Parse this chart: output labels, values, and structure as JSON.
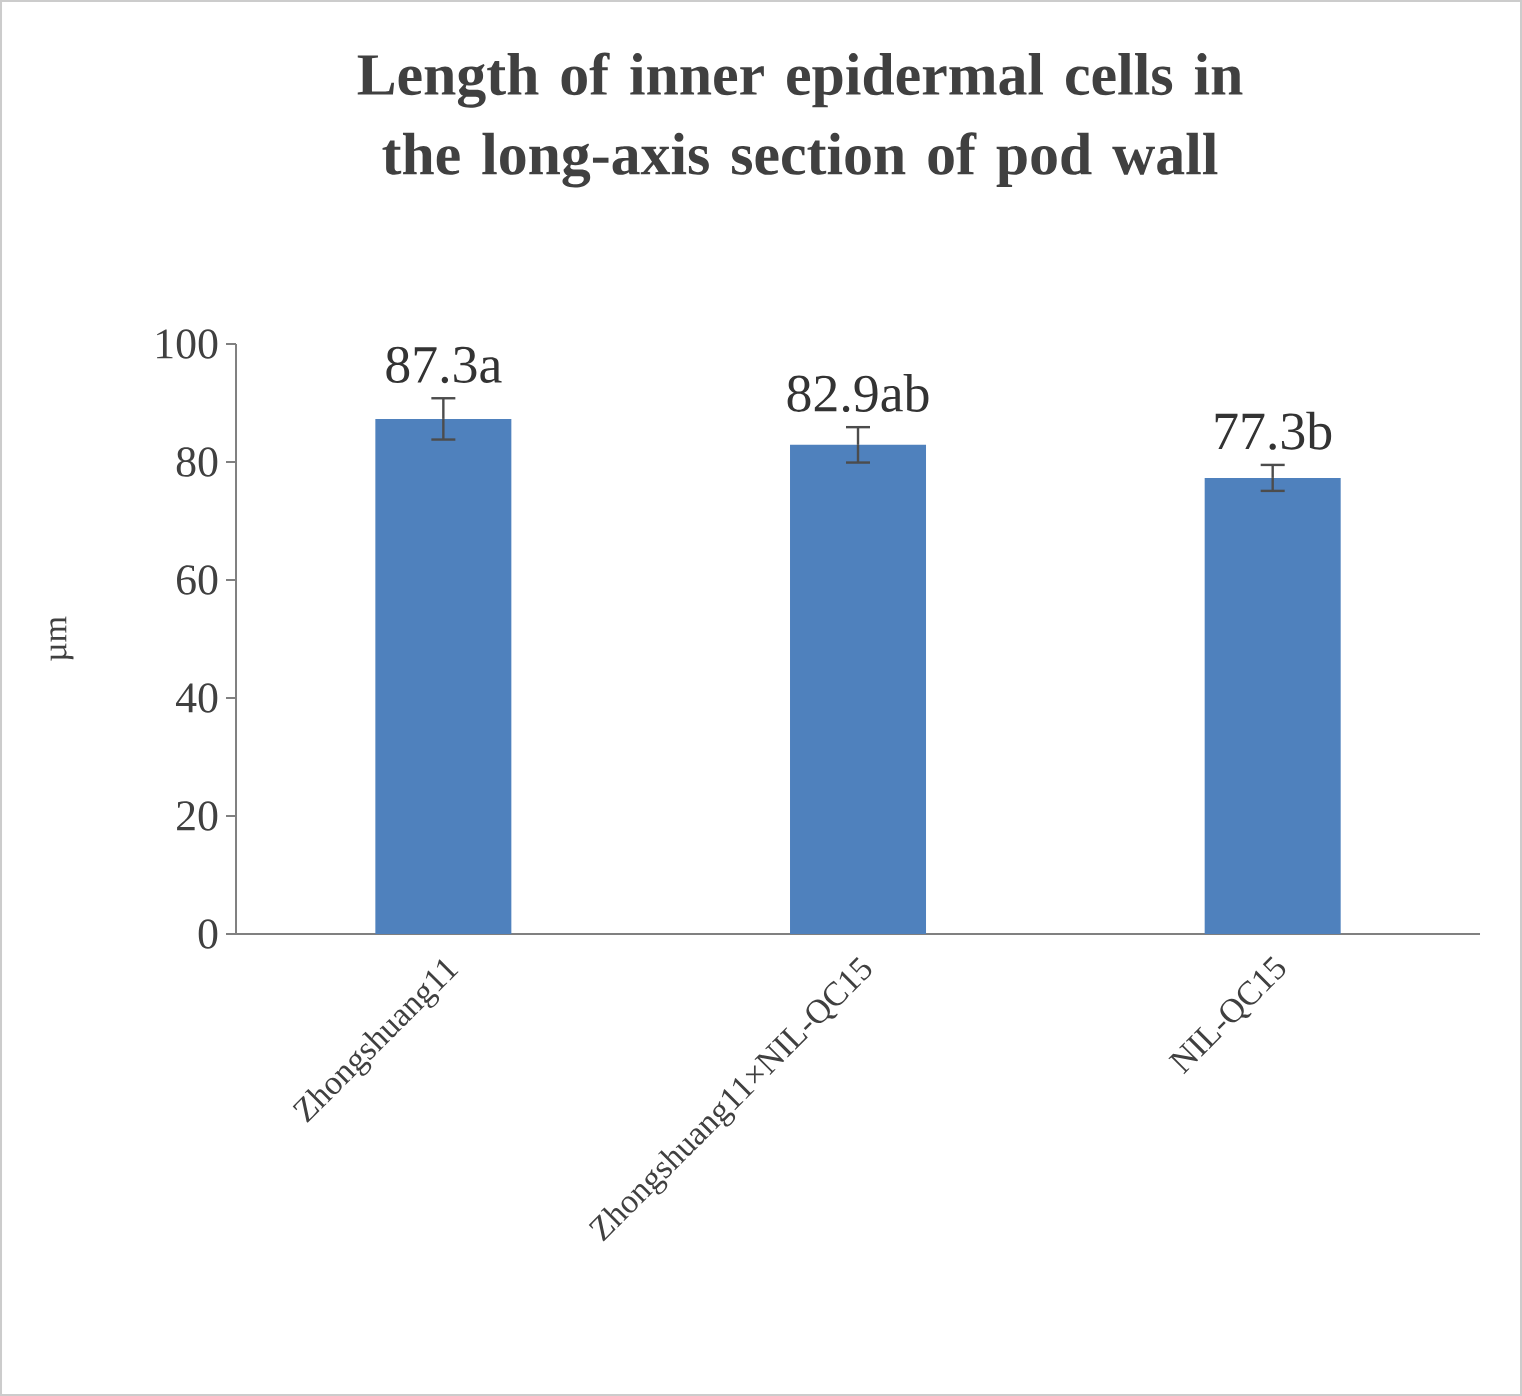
{
  "chart_data": {
    "type": "bar",
    "title": "Length of inner epidermal cells in the long-axis section of pod wall",
    "ylabel": "µm",
    "categories": [
      "Zhongshuang11",
      "Zhongshuang11×NIL-QC15",
      "NIL-QC15"
    ],
    "values": [
      87.3,
      82.9,
      77.3
    ],
    "errors": [
      3.5,
      3.0,
      2.2
    ],
    "value_labels": [
      "87.3a",
      "82.9ab",
      "77.3b"
    ],
    "color": "#4f81bd",
    "ylim": [
      0,
      100
    ],
    "yticks": [
      0,
      20,
      40,
      60,
      80,
      100
    ]
  }
}
